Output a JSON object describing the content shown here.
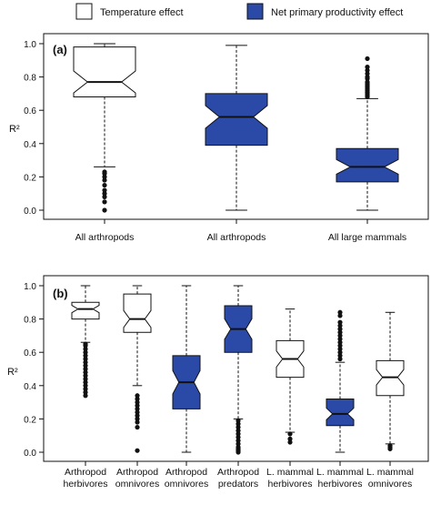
{
  "legend": {
    "items": [
      {
        "label": "Temperature effect",
        "fill": "#ffffff"
      },
      {
        "label": "Net primary productivity effect",
        "fill": "#2b4aa8"
      }
    ]
  },
  "colors": {
    "temperature": "#ffffff",
    "npp": "#2b4aa8",
    "outline": "#111111"
  },
  "chart_data": [
    {
      "type": "boxplot",
      "panel_label": "(a)",
      "ylabel": "R²",
      "ylim": [
        0,
        1.05
      ],
      "yticks": [
        0.0,
        0.2,
        0.4,
        0.6,
        0.8,
        1.0
      ],
      "notched": true,
      "categories": [
        "All arthropods",
        "All arthropods",
        "All large mammals"
      ],
      "boxes": [
        {
          "category": "All arthropods",
          "effect": "Temperature effect",
          "min": 0.26,
          "q1": 0.68,
          "median": 0.77,
          "q3": 0.98,
          "max": 1.0,
          "outliers": [
            0.0,
            0.05,
            0.08,
            0.1,
            0.12,
            0.15,
            0.18,
            0.2,
            0.22,
            0.23
          ]
        },
        {
          "category": "All arthropods",
          "effect": "Net primary productivity effect",
          "min": 0.0,
          "q1": 0.39,
          "median": 0.56,
          "q3": 0.7,
          "max": 0.99,
          "outliers": []
        },
        {
          "category": "All large mammals",
          "effect": "Net primary productivity effect",
          "min": 0.0,
          "q1": 0.17,
          "median": 0.26,
          "q3": 0.37,
          "max": 0.67,
          "outliers": [
            0.68,
            0.69,
            0.7,
            0.71,
            0.72,
            0.73,
            0.74,
            0.75,
            0.76,
            0.77,
            0.79,
            0.8,
            0.82,
            0.84,
            0.86,
            0.91
          ]
        }
      ]
    },
    {
      "type": "boxplot",
      "panel_label": "(b)",
      "ylabel": "R²",
      "ylim": [
        0,
        1.05
      ],
      "yticks": [
        0.0,
        0.2,
        0.4,
        0.6,
        0.8,
        1.0
      ],
      "notched": true,
      "categories": [
        "Arthropod herbivores",
        "Arthropod omnivores",
        "Arthropod omnivores",
        "Arthropod predators",
        "L. mammal herbivores",
        "L. mammal herbivores",
        "L. mammal omnivores"
      ],
      "boxes": [
        {
          "category": "Arthropod herbivores",
          "effect": "Temperature effect",
          "min": 0.66,
          "q1": 0.8,
          "median": 0.86,
          "q3": 0.9,
          "max": 1.0,
          "outliers": [
            0.34,
            0.36,
            0.38,
            0.4,
            0.42,
            0.44,
            0.46,
            0.48,
            0.5,
            0.52,
            0.54,
            0.56,
            0.58,
            0.6,
            0.62,
            0.64,
            0.65
          ]
        },
        {
          "category": "Arthropod omnivores",
          "effect": "Temperature effect",
          "min": 0.4,
          "q1": 0.72,
          "median": 0.8,
          "q3": 0.95,
          "max": 1.0,
          "outliers": [
            0.01,
            0.15,
            0.18,
            0.2,
            0.22,
            0.24,
            0.26,
            0.28,
            0.3,
            0.32,
            0.34
          ]
        },
        {
          "category": "Arthropod omnivores",
          "effect": "Net primary productivity effect",
          "min": 0.0,
          "q1": 0.26,
          "median": 0.42,
          "q3": 0.58,
          "max": 1.0,
          "outliers": []
        },
        {
          "category": "Arthropod predators",
          "effect": "Net primary productivity effect",
          "min": 0.2,
          "q1": 0.6,
          "median": 0.74,
          "q3": 0.88,
          "max": 1.0,
          "outliers": [
            0.0,
            0.01,
            0.02,
            0.03,
            0.05,
            0.07,
            0.09,
            0.11,
            0.13,
            0.15,
            0.17,
            0.19
          ]
        },
        {
          "category": "L. mammal herbivores",
          "effect": "Temperature effect",
          "min": 0.12,
          "q1": 0.45,
          "median": 0.56,
          "q3": 0.67,
          "max": 0.86,
          "outliers": [
            0.06,
            0.08,
            0.11
          ]
        },
        {
          "category": "L. mammal herbivores",
          "effect": "Net primary productivity effect",
          "min": 0.0,
          "q1": 0.16,
          "median": 0.23,
          "q3": 0.32,
          "max": 0.54,
          "outliers": [
            0.56,
            0.58,
            0.6,
            0.62,
            0.64,
            0.66,
            0.68,
            0.7,
            0.72,
            0.74,
            0.76,
            0.78,
            0.82,
            0.84
          ]
        },
        {
          "category": "L. mammal omnivores",
          "effect": "Temperature effect",
          "min": 0.05,
          "q1": 0.34,
          "median": 0.45,
          "q3": 0.55,
          "max": 0.84,
          "outliers": [
            0.02,
            0.03,
            0.04
          ]
        }
      ]
    }
  ]
}
